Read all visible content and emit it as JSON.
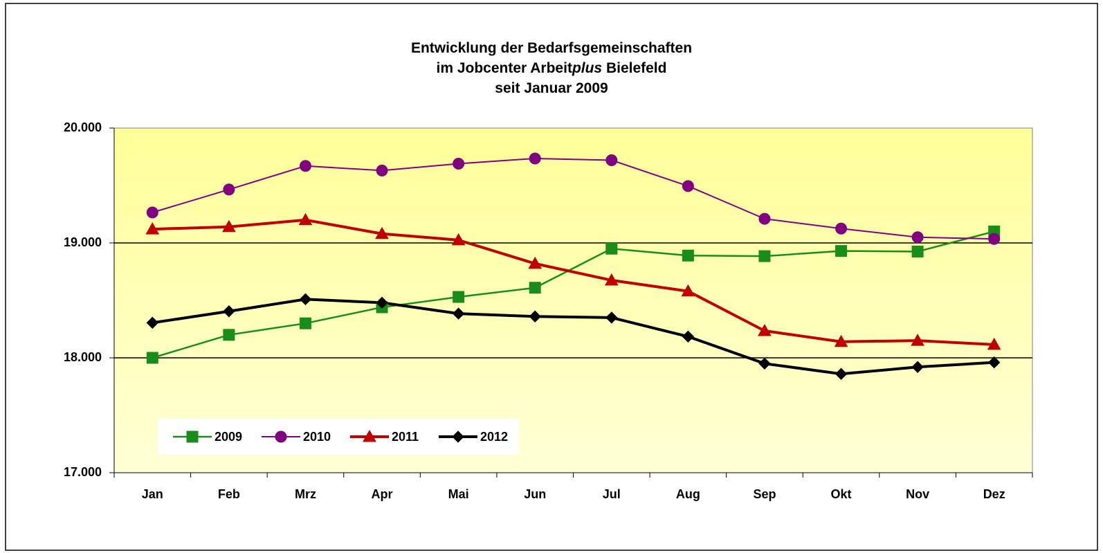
{
  "chart_data": {
    "type": "line",
    "title": [
      [
        "Entwicklung der Bedarfsgemeinschaften"
      ],
      [
        "im Jobcenter Arbeit",
        "plus",
        " Bielefeld"
      ],
      [
        "seit Januar 2009"
      ]
    ],
    "categories": [
      "Jan",
      "Feb",
      "Mrz",
      "Apr",
      "Mai",
      "Jun",
      "Jul",
      "Aug",
      "Sep",
      "Okt",
      "Nov",
      "Dez"
    ],
    "series": [
      {
        "name": "2009",
        "color": "#1a8c1a",
        "marker": "square",
        "values": [
          18000,
          18200,
          18300,
          18440,
          18530,
          18610,
          18950,
          18890,
          18885,
          18930,
          18925,
          19100
        ]
      },
      {
        "name": "2010",
        "color": "#800080",
        "marker": "circle",
        "values": [
          19265,
          19465,
          19670,
          19630,
          19690,
          19735,
          19720,
          19495,
          19210,
          19125,
          19050,
          19035
        ]
      },
      {
        "name": "2011",
        "color": "#c00000",
        "marker": "triangle",
        "values": [
          19120,
          19140,
          19200,
          19080,
          19025,
          18820,
          18675,
          18580,
          18235,
          18140,
          18150,
          18115
        ]
      },
      {
        "name": "2012",
        "color": "#000000",
        "marker": "diamond",
        "values": [
          18305,
          18405,
          18510,
          18480,
          18385,
          18360,
          18350,
          18185,
          17950,
          17860,
          17920,
          17960
        ]
      }
    ],
    "ylim": [
      17000,
      20000
    ],
    "yticks": [
      {
        "value": 17000,
        "label": "17.000"
      },
      {
        "value": 18000,
        "label": "18.000"
      },
      {
        "value": 19000,
        "label": "19.000"
      },
      {
        "value": 20000,
        "label": "20.000"
      }
    ],
    "grid": true,
    "legend": "lower-left"
  }
}
